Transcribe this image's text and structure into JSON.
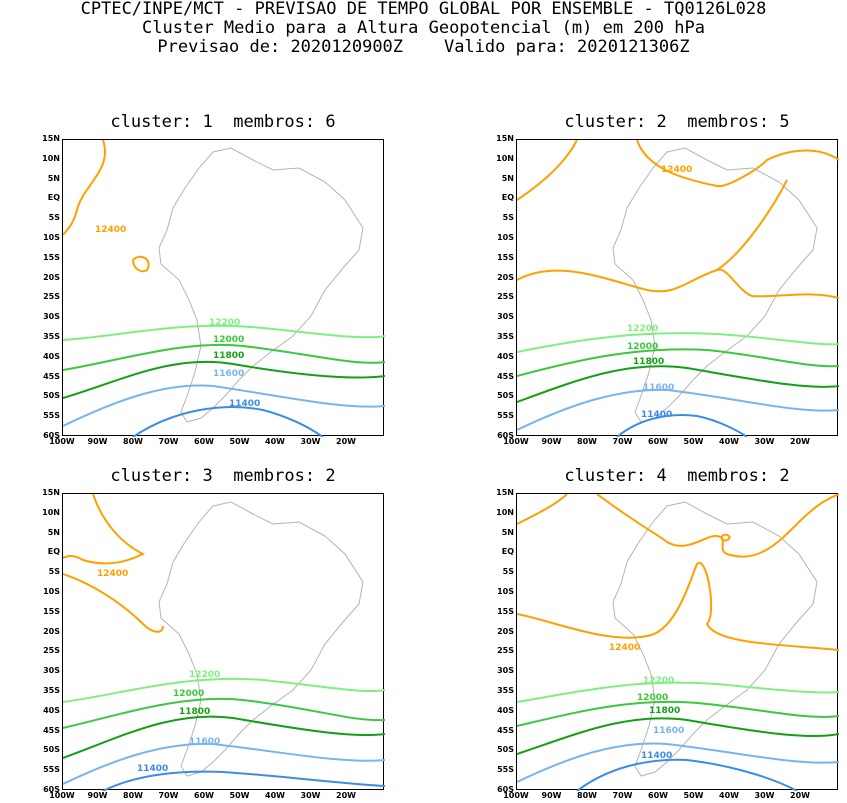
{
  "header": {
    "line1": "CPTEC/INPE/MCT - PREVISAO DE TEMPO GLOBAL POR ENSEMBLE - TQ0126L028",
    "line2": "Cluster Medio para a Altura Geopotencial (m) em 200 hPa",
    "line3": "Previsao de: 2020120900Z    Valido para: 2020121306Z"
  },
  "axes": {
    "lat": [
      "15N",
      "10N",
      "5N",
      "EQ",
      "5S",
      "10S",
      "15S",
      "20S",
      "25S",
      "30S",
      "35S",
      "40S",
      "45S",
      "50S",
      "55S",
      "60S"
    ],
    "lon": [
      "100W",
      "90W",
      "80W",
      "70W",
      "60W",
      "50W",
      "40W",
      "30W",
      "20W"
    ]
  },
  "colors": {
    "c12400": "#ffa000",
    "c12200": "#80ef80",
    "c12000": "#3cc83c",
    "c11800": "#14a014",
    "c11600": "#78b4f0",
    "c11400": "#3c8ce6",
    "coast": "#b4b4b4"
  },
  "panels": [
    {
      "title": "cluster: 1  membros: 6",
      "labels": {
        "c12400": "12400",
        "c12200": "12200",
        "c12000": "12000",
        "c11800": "11800",
        "c11600": "11600",
        "c11400": "11400"
      }
    },
    {
      "title": "cluster: 2  membros: 5",
      "labels": {
        "c12400": "12400",
        "c12200": "12200",
        "c12000": "12000",
        "c11800": "11800",
        "c11600": "11600",
        "c11400": "11400"
      }
    },
    {
      "title": "cluster: 3  membros: 2",
      "labels": {
        "c12400": "12400",
        "c12200": "12200",
        "c12000": "12000",
        "c11800": "11800",
        "c11600": "11600",
        "c11400": "11400"
      }
    },
    {
      "title": "cluster: 4  membros: 2",
      "labels": {
        "c12400": "12400",
        "c12200": "12200",
        "c12000": "12000",
        "c11800": "11800",
        "c11600": "11600",
        "c11400": "11400"
      }
    }
  ]
}
